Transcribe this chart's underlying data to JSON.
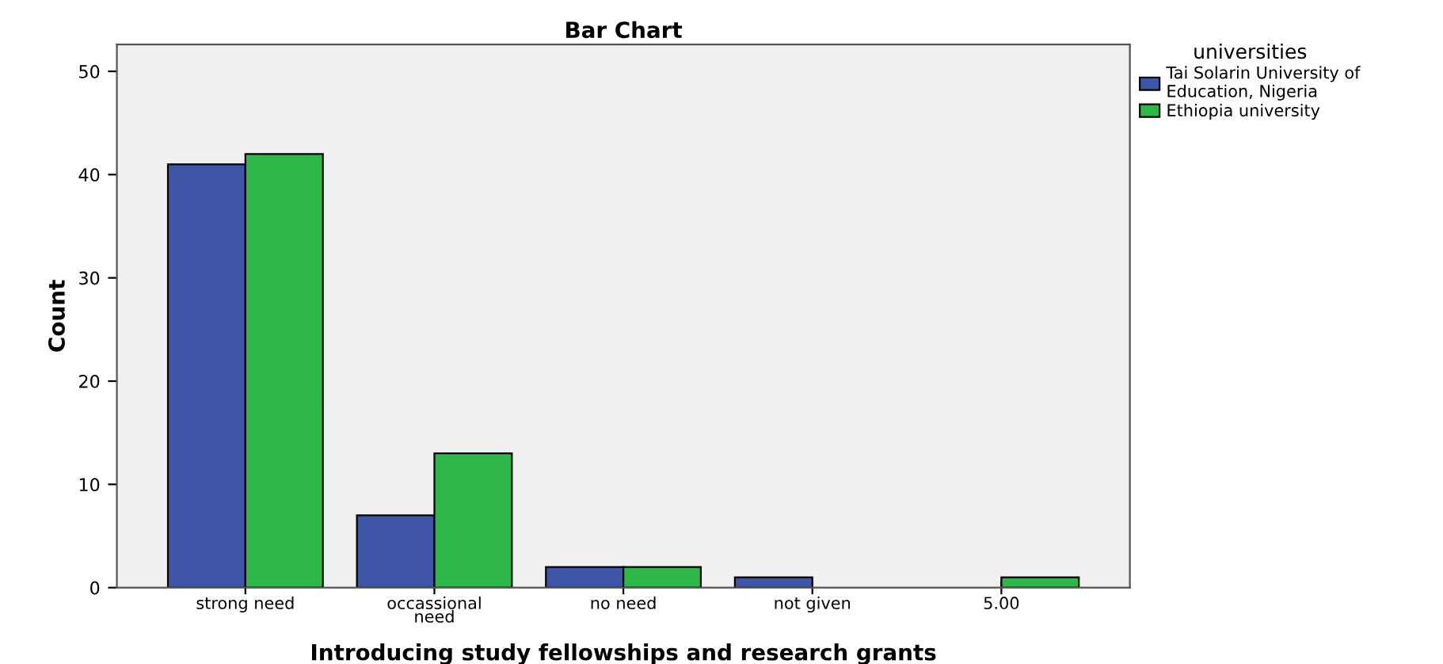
{
  "chart_data": {
    "type": "bar",
    "title": "Bar Chart",
    "xlabel": "Introducing study fellowships and research grants",
    "ylabel": "Count",
    "legend_title": "universities",
    "categories": [
      "strong need",
      "occassional\nneed",
      "no need",
      "not given",
      "5.00"
    ],
    "series": [
      {
        "name": "Tai Solarin University of\nEducation, Nigeria",
        "color": "#3f55a8",
        "values": [
          41,
          7,
          2,
          1,
          null
        ]
      },
      {
        "name": "Ethiopia university",
        "color": "#2fb84a",
        "values": [
          42,
          13,
          2,
          null,
          1
        ]
      }
    ],
    "ylim": [
      0,
      52.6
    ],
    "yticks": [
      0,
      10,
      20,
      30,
      40,
      50
    ],
    "grid": false,
    "legend": "top right"
  }
}
